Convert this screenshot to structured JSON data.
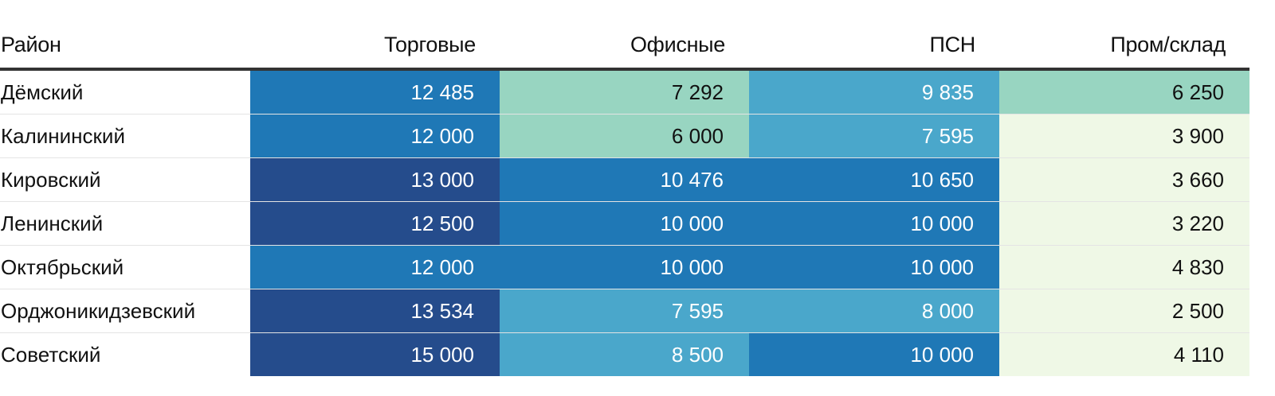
{
  "chart_data": {
    "type": "heatmap",
    "columns": [
      "Район",
      "Торговые",
      "Офисные",
      "ПСН",
      "Пром/склад"
    ],
    "rows": [
      {
        "district": "Дёмский",
        "values": [
          "12 485",
          "7 292",
          "9 835",
          "6 250"
        ],
        "colors": [
          "#1f78b6",
          "#98d5c1",
          "#4aa7cb",
          "#98d5c1"
        ]
      },
      {
        "district": "Калининский",
        "values": [
          "12 000",
          "6 000",
          "7 595",
          "3 900"
        ],
        "colors": [
          "#1f78b6",
          "#98d5c1",
          "#4aa7cb",
          "#eff8e6"
        ]
      },
      {
        "district": "Кировский",
        "values": [
          "13 000",
          "10 476",
          "10 650",
          "3 660"
        ],
        "colors": [
          "#254c8c",
          "#1f78b6",
          "#1f78b6",
          "#eff8e6"
        ]
      },
      {
        "district": "Ленинский",
        "values": [
          "12 500",
          "10 000",
          "10 000",
          "3 220"
        ],
        "colors": [
          "#254c8c",
          "#1f78b6",
          "#1f78b6",
          "#eff8e6"
        ]
      },
      {
        "district": "Октябрьский",
        "values": [
          "12 000",
          "10 000",
          "10 000",
          "4 830"
        ],
        "colors": [
          "#1f78b6",
          "#1f78b6",
          "#1f78b6",
          "#eff8e6"
        ]
      },
      {
        "district": "Орджоникидзевский",
        "values": [
          "13 534",
          "7 595",
          "8 000",
          "2 500"
        ],
        "colors": [
          "#254c8c",
          "#4aa7cb",
          "#4aa7cb",
          "#eff8e6"
        ]
      },
      {
        "district": "Советский",
        "values": [
          "15 000",
          "8 500",
          "10 000",
          "4 110"
        ],
        "colors": [
          "#254c8c",
          "#4aa7cb",
          "#1f78b6",
          "#eff8e6"
        ]
      }
    ],
    "light_text_colors": [
      "#1f78b6",
      "#254c8c",
      "#4aa7cb"
    ],
    "text_colors": {
      "light": "#ffffff",
      "dark": "#111111"
    }
  }
}
